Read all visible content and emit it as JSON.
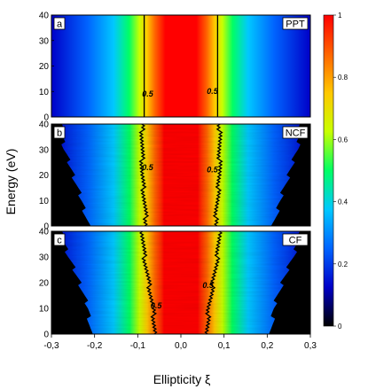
{
  "chart_data": {
    "type": "heatmap",
    "xlabel": "Ellipticity ξ",
    "ylabel": "Energy (eV)",
    "xlim": [
      -0.3,
      0.3
    ],
    "ylim": [
      0,
      40
    ],
    "xticks": [
      "-0,3",
      "-0,2",
      "-0,1",
      "0,0",
      "0,1",
      "0,2",
      "0,3"
    ],
    "yticks": [
      "0",
      "10",
      "20",
      "30",
      "40"
    ],
    "colormap": [
      "#000000",
      "#0000c8",
      "#0064ff",
      "#00c8ff",
      "#00ff64",
      "#c8ff00",
      "#ffc800",
      "#ff6400",
      "#ff0000"
    ],
    "colorbar": {
      "ticks": [
        "0",
        "0.2",
        "0.4",
        "0.6",
        "0.8",
        "1"
      ],
      "range": [
        0,
        1
      ]
    },
    "panels": [
      {
        "letter": "a",
        "label": "PPT",
        "contour_value": "0.5",
        "contour_halfwidth_xi": [
          0.085,
          0.085,
          0.085,
          0.085,
          0.085
        ],
        "contour_energy_eV": [
          0,
          10,
          20,
          30,
          40
        ],
        "black_edge_xi": [],
        "black_edge_energy_eV": []
      },
      {
        "letter": "b",
        "label": "NCF",
        "contour_value": "0.5",
        "contour_halfwidth_xi": [
          0.08,
          0.085,
          0.09,
          0.09,
          0.09
        ],
        "contour_energy_eV": [
          0,
          10,
          20,
          30,
          40
        ],
        "black_edge_xi": [
          0.215,
          0.23,
          0.25,
          0.27,
          0.28
        ],
        "black_edge_energy_eV": [
          0,
          10,
          20,
          30,
          40
        ]
      },
      {
        "letter": "c",
        "label": "CF",
        "contour_value": "0.5",
        "contour_halfwidth_xi": [
          0.06,
          0.065,
          0.075,
          0.085,
          0.09
        ],
        "contour_energy_eV": [
          0,
          10,
          20,
          30,
          40
        ],
        "black_edge_xi": [
          0.21,
          0.215,
          0.235,
          0.26,
          0.28
        ],
        "black_edge_energy_eV": [
          0,
          10,
          20,
          30,
          40
        ]
      }
    ]
  }
}
